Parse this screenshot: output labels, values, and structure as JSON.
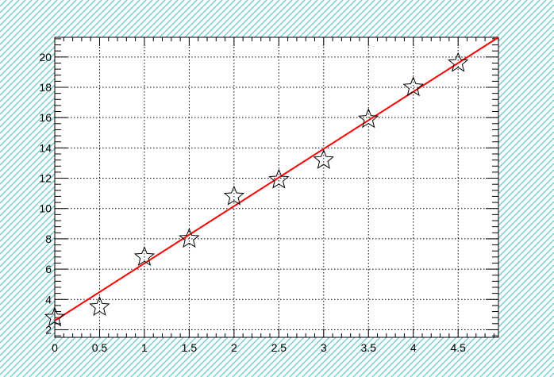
{
  "chart_data": {
    "type": "scatter",
    "title": "",
    "xlabel": "",
    "ylabel": "",
    "xlim": [
      0,
      4.95
    ],
    "ylim": [
      1.5,
      21.3
    ],
    "grid": true,
    "x_ticks": [
      0,
      0.5,
      1,
      1.5,
      2,
      2.5,
      3,
      3.5,
      4,
      4.5
    ],
    "x_tick_labels": [
      "0",
      "0.5",
      "1",
      "1.5",
      "2",
      "2.5",
      "3",
      "3.5",
      "4",
      "4.5"
    ],
    "y_ticks": [
      2,
      4,
      6,
      8,
      10,
      12,
      14,
      16,
      18,
      20
    ],
    "y_tick_labels": [
      "2",
      "4",
      "6",
      "8",
      "10",
      "12",
      "14",
      "16",
      "18",
      "20"
    ],
    "series": [
      {
        "marker": "open-star",
        "x": [
          0,
          0.5,
          1,
          1.5,
          2,
          2.5,
          3,
          3.5,
          4,
          4.5
        ],
        "y": [
          2.8,
          3.5,
          6.8,
          8.0,
          10.8,
          11.9,
          13.2,
          15.9,
          18.0,
          19.6
        ]
      }
    ],
    "fit_line": {
      "color": "#ff0000",
      "x": [
        0,
        4.95
      ],
      "y": [
        2.6,
        21.3
      ]
    },
    "background_hatch_color": "#5fc8c8"
  }
}
